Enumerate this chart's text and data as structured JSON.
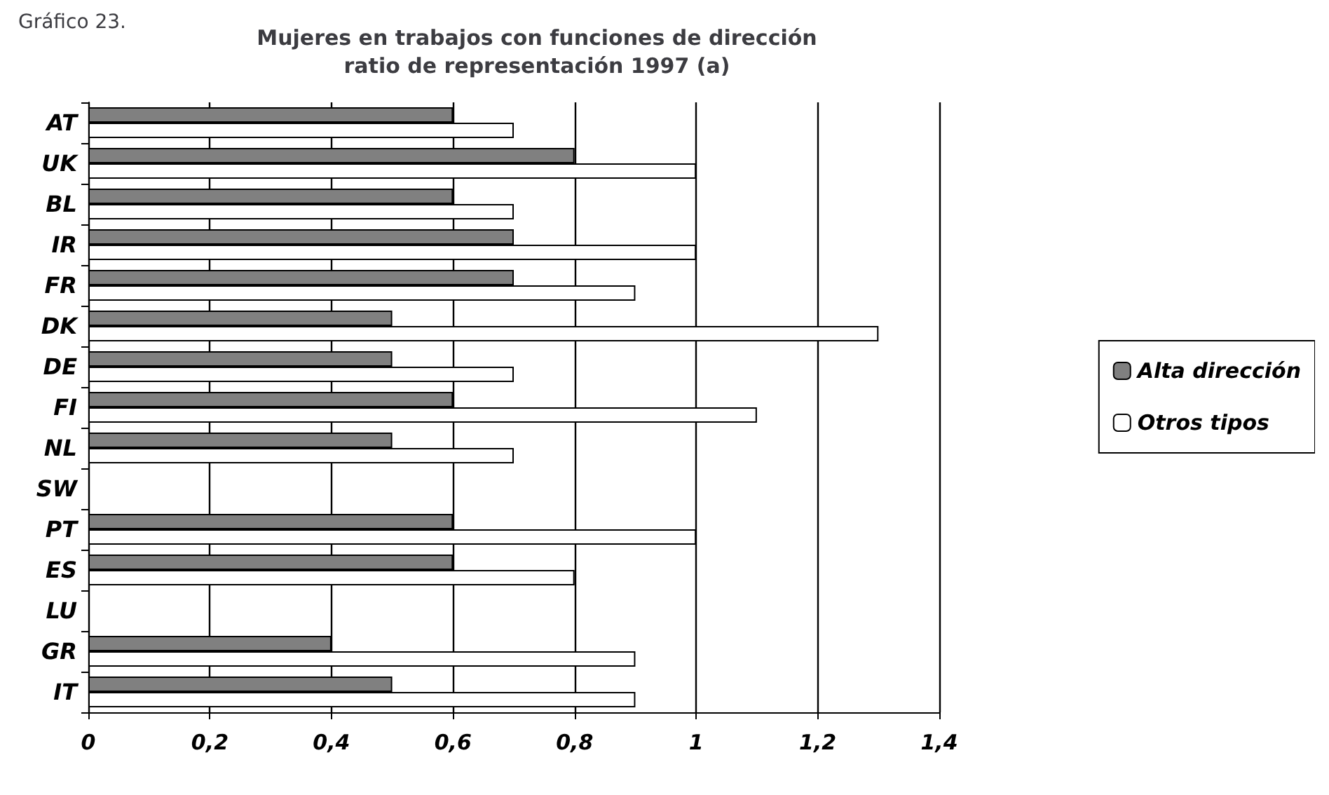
{
  "chart_data": {
    "type": "bar",
    "orientation": "horizontal",
    "title": "Mujeres en trabajos con funciones de dirección\nratio de representación 1997 (a)",
    "annotations": [
      "Gráfico 23."
    ],
    "categories": [
      "AT",
      "UK",
      "BL",
      "IR",
      "FR",
      "DK",
      "DE",
      "FI",
      "NL",
      "SW",
      "PT",
      "ES",
      "LU",
      "GR",
      "IT"
    ],
    "series": [
      {
        "name": "Alta dirección",
        "color": "#808080",
        "values": [
          0.6,
          0.8,
          0.6,
          0.7,
          0.7,
          0.5,
          0.5,
          0.6,
          0.5,
          null,
          0.6,
          0.6,
          null,
          0.4,
          0.5
        ]
      },
      {
        "name": "Otros tipos",
        "color": "#ffffff",
        "values": [
          0.7,
          1.0,
          0.7,
          1.0,
          0.9,
          1.3,
          0.7,
          1.1,
          0.7,
          null,
          1.0,
          0.8,
          null,
          0.9,
          0.9
        ]
      }
    ],
    "xlim": [
      0,
      1.4
    ],
    "xticks": [
      0,
      {
        "value": 0.2,
        "label": "0,2"
      },
      {
        "value": 0.4,
        "label": "0,4"
      },
      {
        "value": 0.6,
        "label": "0,6"
      },
      {
        "value": 0.8,
        "label": "0,8"
      },
      1,
      {
        "value": 1.2,
        "label": "1,2"
      },
      {
        "value": 1.4,
        "label": "1,4"
      }
    ],
    "grid": "x",
    "legend": "right"
  }
}
